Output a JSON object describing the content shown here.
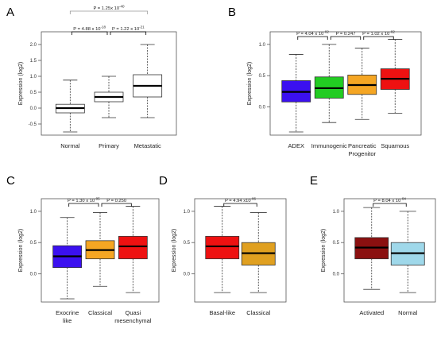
{
  "chart_data": [
    {
      "type": "boxplot",
      "panel_label": "A",
      "ylabel": "Expression (log2)",
      "ylim": [
        -0.75,
        2.2
      ],
      "yticks": [
        "-0.5",
        "0.0",
        "0.5",
        "1.0",
        "1.5",
        "2.0"
      ],
      "categories": [
        "Normal",
        "Primary",
        "Metastatic"
      ],
      "boxes": [
        {
          "name": "Normal",
          "min": -0.75,
          "q1": -0.15,
          "median": 0.0,
          "q3": 0.12,
          "max": 0.88,
          "color": "#ffffff"
        },
        {
          "name": "Primary",
          "min": -0.3,
          "q1": 0.2,
          "median": 0.35,
          "q3": 0.5,
          "max": 1.0,
          "color": "#ffffff"
        },
        {
          "name": "Metastatic",
          "min": -0.3,
          "q1": 0.35,
          "median": 0.7,
          "q3": 1.05,
          "max": 2.0,
          "color": "#ffffff"
        }
      ],
      "comparisons": [
        {
          "from": 0,
          "to": 2,
          "label": "P = 1.25x 10",
          "exp": "-40",
          "color": "#999999"
        },
        {
          "from": 0,
          "to": 1,
          "label": "P = 4.88 x 10",
          "exp": "-18",
          "color": "#000000"
        },
        {
          "from": 1,
          "to": 2,
          "label": "P = 1.22 x 10",
          "exp": "-21",
          "color": "#000000"
        }
      ]
    },
    {
      "type": "boxplot",
      "panel_label": "B",
      "ylabel": "Expression (log2)",
      "ylim": [
        -0.4,
        1.1
      ],
      "yticks": [
        "0.0",
        "0.5",
        "1.0"
      ],
      "categories": [
        "ADEX",
        "Immunogenic",
        "Pancreatic\nProgenitor",
        "Squamous"
      ],
      "boxes": [
        {
          "name": "ADEX",
          "min": -0.4,
          "q1": 0.08,
          "median": 0.24,
          "q3": 0.42,
          "max": 0.84,
          "color": "#3b10f0"
        },
        {
          "name": "Immunogenic",
          "min": -0.25,
          "q1": 0.14,
          "median": 0.3,
          "q3": 0.48,
          "max": 1.0,
          "color": "#22cc22"
        },
        {
          "name": "Pancreatic Progenitor",
          "min": -0.2,
          "q1": 0.2,
          "median": 0.35,
          "q3": 0.51,
          "max": 0.94,
          "color": "#f5a623"
        },
        {
          "name": "Squamous",
          "min": -0.1,
          "q1": 0.28,
          "median": 0.45,
          "q3": 0.61,
          "max": 1.08,
          "color": "#ee1111"
        }
      ],
      "comparisons": [
        {
          "from": 0,
          "to": 1,
          "label": "P = 4.04 x 10",
          "exp": "-02",
          "color": "#000000"
        },
        {
          "from": 1,
          "to": 2,
          "label": "P = 0.247",
          "exp": "",
          "color": "#000000"
        },
        {
          "from": 2,
          "to": 3,
          "label": "P = 1.02 x 10",
          "exp": "-02",
          "color": "#000000"
        }
      ]
    },
    {
      "type": "boxplot",
      "panel_label": "C",
      "ylabel": "Expression (log2)",
      "ylim": [
        -0.4,
        1.1
      ],
      "yticks": [
        "0.0",
        "0.5",
        "1.0"
      ],
      "categories": [
        "Exocrine\nlike",
        "Classical",
        "Quasi\nmesenchymal"
      ],
      "boxes": [
        {
          "name": "Exocrine like",
          "min": -0.4,
          "q1": 0.1,
          "median": 0.28,
          "q3": 0.45,
          "max": 0.9,
          "color": "#3b10f0"
        },
        {
          "name": "Classical",
          "min": -0.2,
          "q1": 0.24,
          "median": 0.38,
          "q3": 0.53,
          "max": 0.98,
          "color": "#f5a623"
        },
        {
          "name": "Quasi mesenchymal",
          "min": -0.3,
          "q1": 0.24,
          "median": 0.44,
          "q3": 0.6,
          "max": 1.08,
          "color": "#ee1111"
        }
      ],
      "comparisons": [
        {
          "from": 0,
          "to": 1,
          "label": "P = 1.30 x 10",
          "exp": "-05",
          "color": "#000000"
        },
        {
          "from": 1,
          "to": 2,
          "label": "P = 0.250",
          "exp": "",
          "color": "#000000"
        }
      ]
    },
    {
      "type": "boxplot",
      "panel_label": "D",
      "ylabel": "Expression (log2)",
      "ylim": [
        -0.4,
        1.1
      ],
      "yticks": [
        "0.0",
        "0.5",
        "1.0"
      ],
      "categories": [
        "Basal-like",
        "Classical"
      ],
      "boxes": [
        {
          "name": "Basal-like",
          "min": -0.3,
          "q1": 0.24,
          "median": 0.44,
          "q3": 0.6,
          "max": 1.08,
          "color": "#ee1111"
        },
        {
          "name": "Classical",
          "min": -0.3,
          "q1": 0.14,
          "median": 0.33,
          "q3": 0.5,
          "max": 0.98,
          "color": "#e0a020"
        }
      ],
      "comparisons": [
        {
          "from": 0,
          "to": 1,
          "label": "P = 4.94 x10",
          "exp": "-06",
          "color": "#000000"
        }
      ]
    },
    {
      "type": "boxplot",
      "panel_label": "E",
      "ylabel": "Expression (log2)",
      "ylim": [
        -0.4,
        1.1
      ],
      "yticks": [
        "0.0",
        "0.5",
        "1.0"
      ],
      "categories": [
        "Activated",
        "Normal"
      ],
      "boxes": [
        {
          "name": "Activated",
          "min": -0.25,
          "q1": 0.24,
          "median": 0.42,
          "q3": 0.58,
          "max": 1.06,
          "color": "#8b1010"
        },
        {
          "name": "Normal",
          "min": -0.3,
          "q1": 0.14,
          "median": 0.33,
          "q3": 0.5,
          "max": 1.0,
          "color": "#9fd8ea"
        }
      ],
      "comparisons": [
        {
          "from": 0,
          "to": 1,
          "label": "P = 8.04 x 10",
          "exp": "-04",
          "color": "#000000"
        }
      ]
    }
  ]
}
